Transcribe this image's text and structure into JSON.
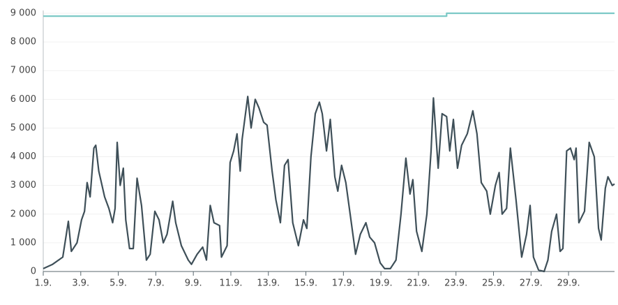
{
  "chart_data": {
    "type": "line",
    "xlim": [
      1,
      31.45
    ],
    "xticks": [
      {
        "value": 1,
        "label": "1.9."
      },
      {
        "value": 3,
        "label": "3.9."
      },
      {
        "value": 5,
        "label": "5.9."
      },
      {
        "value": 7,
        "label": "7.9."
      },
      {
        "value": 9,
        "label": "9.9."
      },
      {
        "value": 11,
        "label": "11.9."
      },
      {
        "value": 13,
        "label": "13.9."
      },
      {
        "value": 15,
        "label": "15.9."
      },
      {
        "value": 17,
        "label": "17.9."
      },
      {
        "value": 19,
        "label": "19.9."
      },
      {
        "value": 21,
        "label": "21.9."
      },
      {
        "value": 23,
        "label": "23.9."
      },
      {
        "value": 25,
        "label": "25.9."
      },
      {
        "value": 27,
        "label": "27.9."
      },
      {
        "value": 29,
        "label": "29.9."
      }
    ],
    "ylim": [
      0,
      9000
    ],
    "yticks": [
      0,
      {
        "value": 1000,
        "label": "1 000"
      },
      {
        "value": 2000,
        "label": "2 000"
      },
      {
        "value": 3000,
        "label": "3 000"
      },
      {
        "value": 4000,
        "label": "4 000"
      },
      {
        "value": 5000,
        "label": "5 000"
      },
      {
        "value": 6000,
        "label": "6 000"
      },
      {
        "value": 7000,
        "label": "7 000"
      },
      {
        "value": 8000,
        "label": "8 000"
      },
      {
        "value": 9000,
        "label": "9 000"
      }
    ],
    "grid": true,
    "series": [
      {
        "color": "#7cc9c6",
        "x": [
          1,
          22.5,
          22.5,
          31.45
        ],
        "values": [
          8900,
          8900,
          9000,
          9000
        ]
      },
      {
        "color": "#3e4f58",
        "x": [
          1,
          1.5,
          2.04,
          2.34,
          2.5,
          2.8,
          3.04,
          3.2,
          3.34,
          3.5,
          3.7,
          3.8,
          3.96,
          4.27,
          4.5,
          4.7,
          4.83,
          4.94,
          5.1,
          5.27,
          5.4,
          5.6,
          5.8,
          6.0,
          6.24,
          6.5,
          6.7,
          6.95,
          7.17,
          7.4,
          7.6,
          7.9,
          8.06,
          8.36,
          8.73,
          8.9,
          9.2,
          9.5,
          9.7,
          9.9,
          10.1,
          10.4,
          10.5,
          10.8,
          10.96,
          11.15,
          11.33,
          11.5,
          11.6,
          11.9,
          12.08,
          12.3,
          12.5,
          12.75,
          12.93,
          13.2,
          13.4,
          13.64,
          13.86,
          14.05,
          14.3,
          14.6,
          14.87,
          15.05,
          15.27,
          15.5,
          15.72,
          15.87,
          16.1,
          16.3,
          16.54,
          16.7,
          16.9,
          17.13,
          17.36,
          17.65,
          17.9,
          18.2,
          18.4,
          18.66,
          18.96,
          19.2,
          19.5,
          19.8,
          20.07,
          20.33,
          20.55,
          20.7,
          20.9,
          21.18,
          21.45,
          21.67,
          21.8,
          22.05,
          22.26,
          22.5,
          22.67,
          22.86,
          23.08,
          23.3,
          23.6,
          23.9,
          24.12,
          24.35,
          24.64,
          24.83,
          25.1,
          25.3,
          25.46,
          25.7,
          25.9,
          26.2,
          26.5,
          26.76,
          26.95,
          27.13,
          27.4,
          27.7,
          27.9,
          28.1,
          28.36,
          28.55,
          28.7,
          28.9,
          29.1,
          29.3,
          29.4,
          29.55,
          29.85,
          30.1,
          30.37,
          30.6,
          30.74,
          30.96,
          31.1,
          31.33,
          31.45
        ],
        "values": [
          100,
          250,
          500,
          1750,
          700,
          1000,
          1800,
          2100,
          3100,
          2600,
          4300,
          4400,
          3500,
          2600,
          2200,
          1700,
          2200,
          4500,
          3000,
          3600,
          1800,
          800,
          800,
          3250,
          2300,
          400,
          600,
          2100,
          1800,
          1000,
          1300,
          2450,
          1700,
          900,
          400,
          250,
          600,
          850,
          400,
          2300,
          1700,
          1600,
          500,
          900,
          3800,
          4200,
          4800,
          3500,
          4600,
          6100,
          5000,
          6000,
          5700,
          5200,
          5100,
          3500,
          2500,
          1700,
          3700,
          3900,
          1700,
          900,
          1800,
          1500,
          4000,
          5500,
          5900,
          5500,
          4200,
          5300,
          3300,
          2800,
          3700,
          3100,
          2000,
          600,
          1300,
          1700,
          1200,
          1000,
          300,
          100,
          100,
          400,
          2000,
          3950,
          2700,
          3200,
          1400,
          700,
          2000,
          4200,
          6050,
          3600,
          5500,
          5400,
          4200,
          5300,
          3600,
          4400,
          4800,
          5600,
          4800,
          3100,
          2800,
          2000,
          3000,
          3450,
          2000,
          2200,
          4300,
          2500,
          500,
          1300,
          2300,
          500,
          50,
          0,
          400,
          1400,
          2000,
          700,
          800,
          4200,
          4300,
          3900,
          4300,
          1700,
          2100,
          4500,
          4000,
          1500,
          1100,
          2900,
          3300,
          3000,
          3050
        ]
      }
    ]
  }
}
